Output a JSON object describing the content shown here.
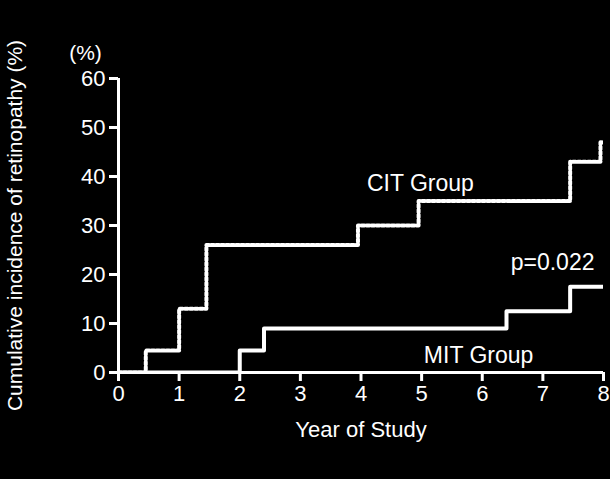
{
  "chart_data": {
    "type": "line",
    "xlabel": "Year of Study",
    "ylabel": "Cumulative incidence of retinopathy (%)",
    "yunit": "(%)",
    "xlim": [
      0,
      8
    ],
    "xticks": [
      0,
      1,
      2,
      3,
      4,
      5,
      6,
      7,
      8
    ],
    "ylim": [
      0,
      60
    ],
    "yticks": [
      0,
      10,
      20,
      30,
      40,
      50,
      60
    ],
    "grid": false,
    "series": [
      {
        "name": "CIT Group",
        "color": "#ffffff",
        "line_style": "dotted",
        "x": [
          0,
          0.45,
          1.0,
          1.45,
          3.95,
          4.95,
          7.45,
          7.95,
          8
        ],
        "values": [
          0,
          4.5,
          13,
          26,
          30,
          35,
          43,
          47,
          47
        ],
        "label": {
          "x": 4.98,
          "y": 38.6
        }
      },
      {
        "name": "MIT Group",
        "color": "#ffffff",
        "line_style": "solid",
        "x": [
          0,
          2.0,
          2.4,
          6.4,
          7.45,
          8
        ],
        "values": [
          0,
          4.5,
          9,
          12.5,
          17.5,
          17.5
        ],
        "label": {
          "x": 5.94,
          "y": 3.5
        }
      }
    ],
    "annotations": [
      {
        "text": "p=0.022",
        "x": 7.16,
        "y": 22.4
      }
    ]
  }
}
